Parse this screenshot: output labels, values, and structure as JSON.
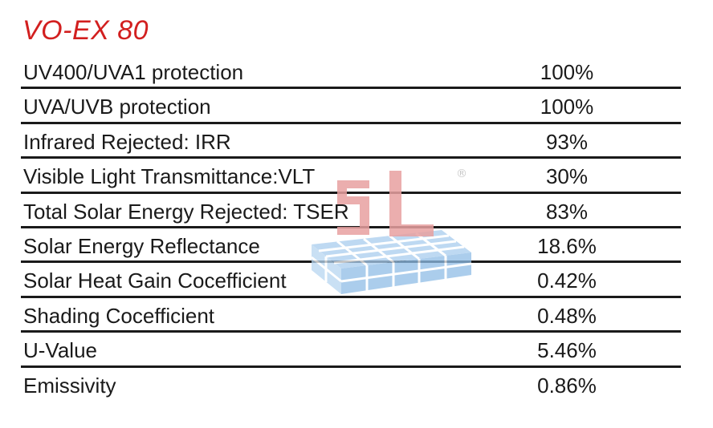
{
  "title": "VO-EX 80",
  "watermark": {
    "logo_text": "SL",
    "registered_mark": "®",
    "letter_color": "#e8a0a0",
    "grid_color": "#a9cdee"
  },
  "specs": [
    {
      "label": "UV400/UVA1 protection",
      "value": "100%"
    },
    {
      "label": "UVA/UVB protection",
      "value": "100%"
    },
    {
      "label": "Infrared Rejected: IRR",
      "value": "93%"
    },
    {
      "label": "Visible Light Transmittance:VLT",
      "value": "30%"
    },
    {
      "label": "Total Solar Energy Rejected: TSER",
      "value": "83%"
    },
    {
      "label": "Solar Energy Reflectance",
      "value": "18.6%"
    },
    {
      "label": "Solar Heat Gain Cocefficient",
      "value": "0.42%"
    },
    {
      "label": "Shading Cocefficient",
      "value": "0.48%"
    },
    {
      "label": "U-Value",
      "value": "5.46%"
    },
    {
      "label": "Emissivity",
      "value": "0.86%"
    }
  ],
  "colors": {
    "title": "#d21f1f",
    "text": "#1a1a1a",
    "rule": "#1a1a1a"
  }
}
